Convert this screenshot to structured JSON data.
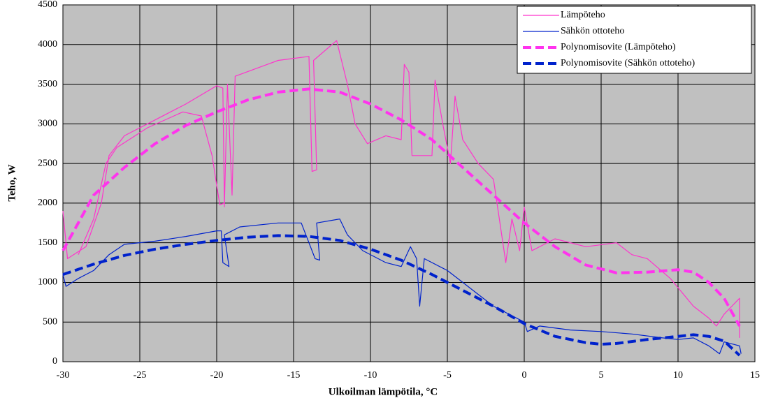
{
  "chart_data": {
    "type": "line",
    "x_label": "Ulkoilman lämpötila, °C",
    "y_label": "Teho, W",
    "xlim": [
      -30,
      15
    ],
    "xticks": [
      -30,
      -25,
      -20,
      -15,
      -10,
      -5,
      0,
      5,
      10,
      15
    ],
    "ylim": [
      0,
      4500
    ],
    "yticks": [
      0,
      500,
      1000,
      1500,
      2000,
      2500,
      3000,
      3500,
      4000,
      4500
    ],
    "grid": true,
    "legend": "top-right",
    "series": [
      {
        "name": "Lämpöteho",
        "color": "#ff33cc",
        "dash": false,
        "width": 1.2,
        "x": [
          -30,
          -29.7,
          -28.5,
          -27.5,
          -27,
          -26,
          -24,
          -22,
          -20,
          -19.6,
          -19.5,
          -19.8,
          -20.3,
          -21,
          -22.2,
          -24.5,
          -26.5,
          -27.2,
          -28,
          -29,
          null,
          -19.5,
          -19.3,
          -19,
          -18.8,
          -16,
          -14,
          -13.8,
          -13.5,
          -13.7,
          -12.2,
          -11.5,
          -11,
          -10.2,
          -9,
          -8,
          -7.8,
          -7.5,
          -7.3,
          -6,
          -5.8,
          -5.3,
          -4.8,
          -4.5,
          -4,
          -3,
          -2,
          -1.2,
          -0.8,
          -0.3,
          0,
          0.5,
          2,
          4,
          6,
          7,
          8,
          9.5,
          11,
          12,
          12.5,
          13,
          13.5,
          14,
          14
        ],
        "values": [
          1900,
          1300,
          1450,
          2000,
          2600,
          2850,
          3050,
          3250,
          3480,
          3450,
          2000,
          1980,
          2600,
          3100,
          3150,
          2950,
          2700,
          2500,
          1800,
          1350,
          null,
          1950,
          3500,
          2100,
          3600,
          3800,
          3850,
          2400,
          2420,
          3800,
          4050,
          3500,
          3000,
          2750,
          2850,
          2800,
          3750,
          3650,
          2600,
          2600,
          3550,
          3000,
          2500,
          3350,
          2800,
          2500,
          2300,
          1250,
          1800,
          1400,
          1950,
          1400,
          1550,
          1450,
          1500,
          1350,
          1300,
          1050,
          700,
          550,
          450,
          600,
          700,
          800,
          300
        ]
      },
      {
        "name": "Sähkön ottoteho",
        "color": "#0022cc",
        "dash": false,
        "width": 1.2,
        "x": [
          -30,
          -29.8,
          -29,
          -28,
          -27,
          -26,
          -24,
          -22,
          -20,
          -19.7,
          -19.6,
          -19.2,
          -19.5,
          -18.5,
          -16,
          -14.5,
          -13.6,
          -13.3,
          -13.5,
          -12,
          -11.5,
          -10.5,
          -9,
          -8,
          -7.4,
          -7,
          -6.8,
          -6.5,
          -5,
          -4,
          -3,
          -2,
          -1,
          0,
          0.2,
          1,
          3,
          5,
          7,
          9,
          10,
          11,
          12,
          12.7,
          13,
          14,
          14.1
        ],
        "values": [
          1100,
          950,
          1050,
          1150,
          1350,
          1480,
          1520,
          1580,
          1650,
          1650,
          1250,
          1200,
          1600,
          1700,
          1750,
          1750,
          1300,
          1280,
          1750,
          1800,
          1600,
          1400,
          1250,
          1200,
          1450,
          1300,
          700,
          1300,
          1150,
          1000,
          850,
          700,
          600,
          500,
          380,
          450,
          400,
          380,
          350,
          300,
          280,
          300,
          200,
          100,
          250,
          200,
          100
        ]
      },
      {
        "name": "Polynomisovite (Lämpöteho)",
        "color": "#ff33ee",
        "dash": true,
        "width": 4,
        "x": [
          -30,
          -28,
          -26,
          -24,
          -22,
          -20,
          -18,
          -16,
          -14,
          -12,
          -10,
          -8,
          -6,
          -4,
          -2,
          0,
          2,
          4,
          6,
          8,
          10,
          11,
          12,
          13,
          14
        ],
        "values": [
          1400,
          2100,
          2450,
          2750,
          2980,
          3150,
          3300,
          3400,
          3440,
          3400,
          3250,
          3050,
          2800,
          2450,
          2100,
          1750,
          1450,
          1220,
          1120,
          1130,
          1160,
          1130,
          1000,
          800,
          450
        ]
      },
      {
        "name": "Polynomisovite (Sähkön ottoteho)",
        "color": "#0022cc",
        "dash": true,
        "width": 4,
        "x": [
          -30,
          -28,
          -26,
          -24,
          -22,
          -20,
          -18,
          -16,
          -14,
          -12,
          -10,
          -8,
          -6,
          -4,
          -2,
          0,
          2,
          4,
          5,
          6,
          8,
          10,
          11,
          12,
          13,
          14
        ],
        "values": [
          1100,
          1230,
          1340,
          1420,
          1480,
          1530,
          1570,
          1590,
          1580,
          1530,
          1420,
          1280,
          1100,
          900,
          700,
          480,
          320,
          240,
          220,
          230,
          280,
          320,
          340,
          320,
          260,
          80
        ]
      }
    ]
  }
}
